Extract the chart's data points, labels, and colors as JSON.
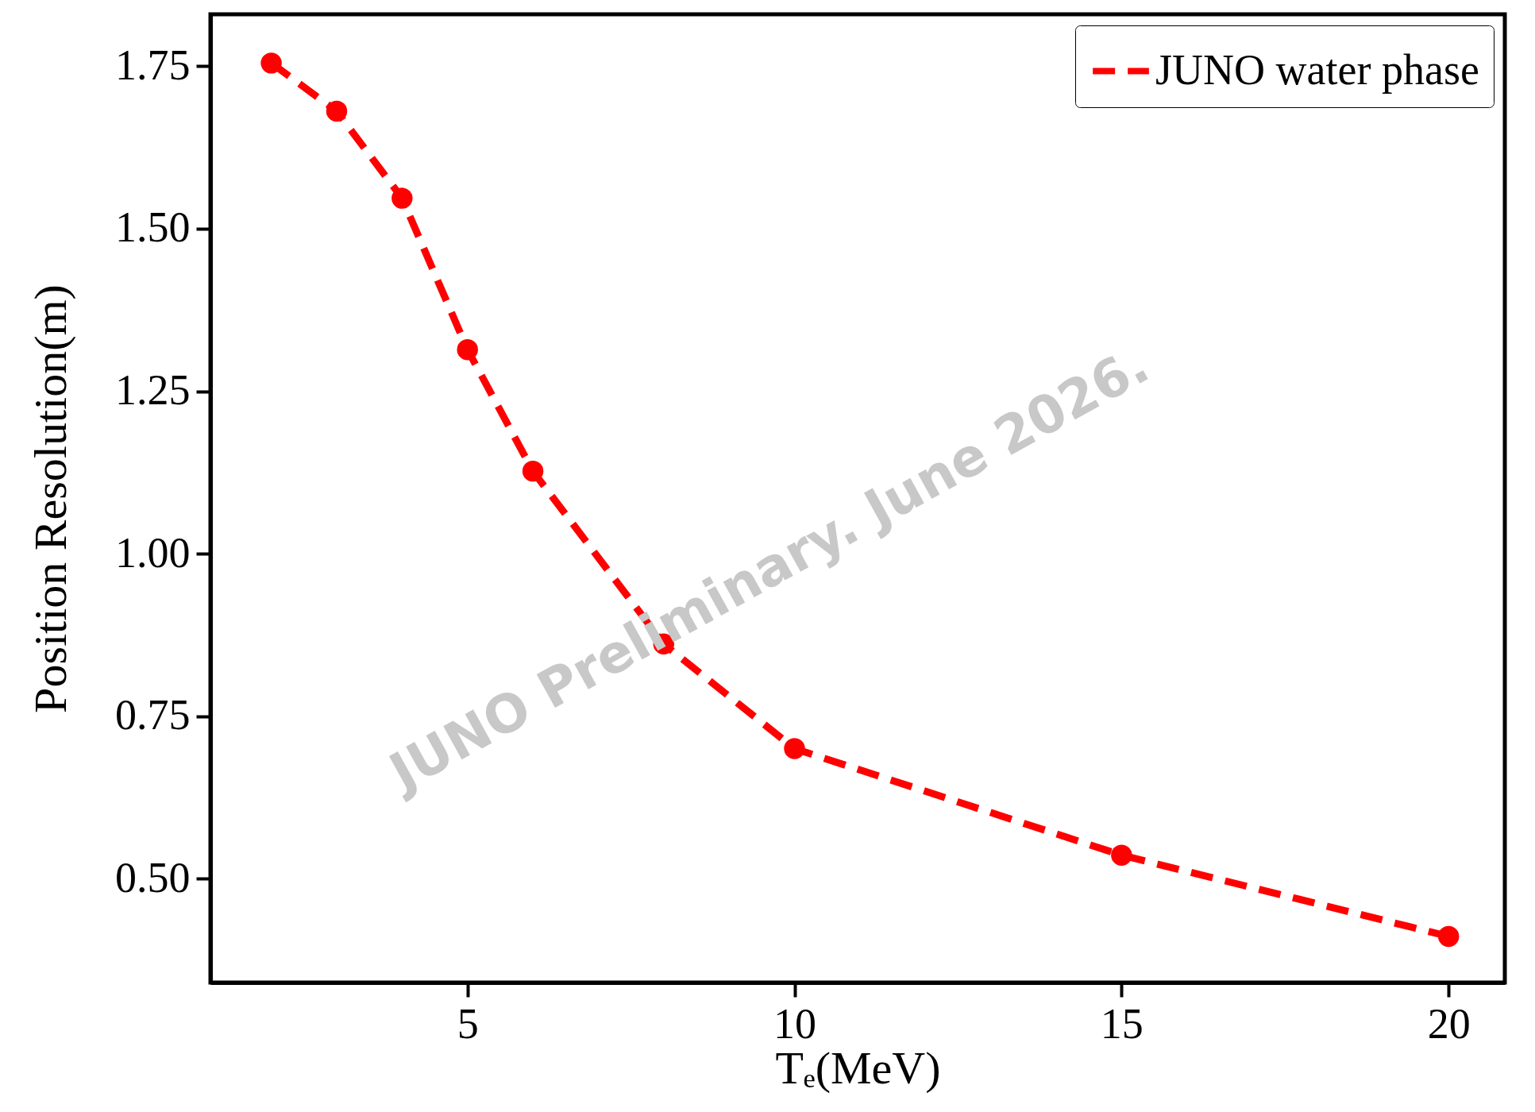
{
  "chart_data": {
    "type": "line",
    "xlabel": "Tₑ(MeV)",
    "ylabel": "Position Resolution(m)",
    "x": [
      2,
      3,
      4,
      5,
      6,
      8,
      10,
      15,
      20
    ],
    "series": [
      {
        "name": "JUNO water phase",
        "color": "#ff0000",
        "values": [
          1.755,
          1.681,
          1.547,
          1.314,
          1.127,
          0.861,
          0.7,
          0.536,
          0.411
        ]
      }
    ],
    "xlim": [
      1.07,
      20.86
    ],
    "ylim": [
      0.34,
      1.83
    ],
    "xticks": [
      5,
      10,
      15,
      20
    ],
    "yticks": [
      {
        "value": 0.5,
        "label": "0.50"
      },
      {
        "value": 0.75,
        "label": "0.75"
      },
      {
        "value": 1.0,
        "label": "1.00"
      },
      {
        "value": 1.25,
        "label": "1.25"
      },
      {
        "value": 1.5,
        "label": "1.50"
      },
      {
        "value": 1.75,
        "label": "1.75"
      }
    ],
    "legend": "top right",
    "marker": "circle",
    "line_style": "dashed",
    "grid": false,
    "annotations": [
      "JUNO Preliminary.  June 2026."
    ]
  }
}
